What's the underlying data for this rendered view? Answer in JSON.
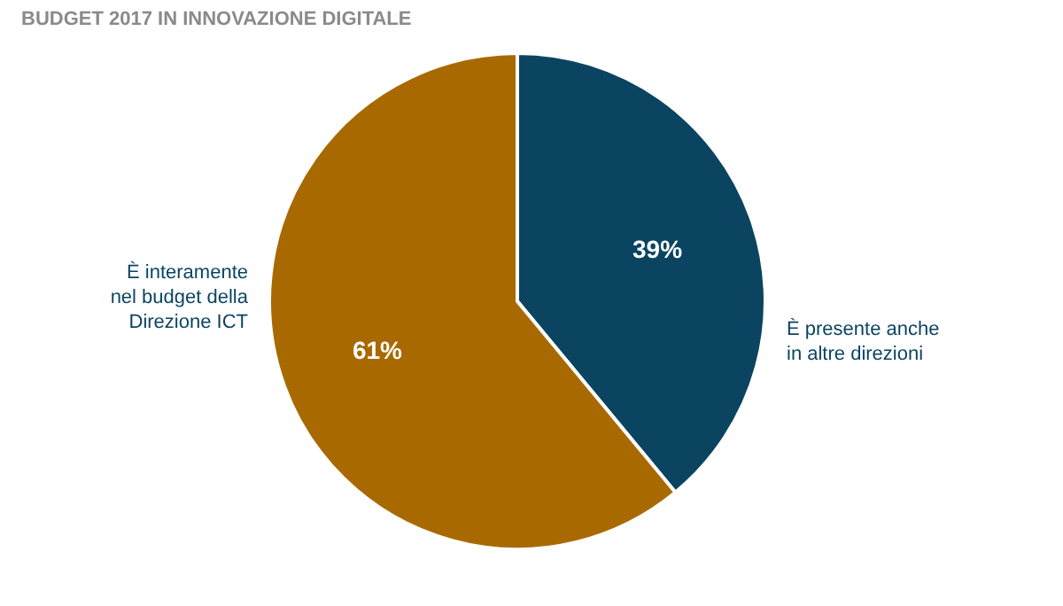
{
  "chart_data": {
    "type": "pie",
    "title": "BUDGET 2017 IN INNOVAZIONE DIGITALE",
    "categories": [
      "È presente anche\nin altre direzioni",
      "È interamente\nnel budget della\nDirezione ICT"
    ],
    "values": [
      39,
      61
    ],
    "colors": [
      "#0b4461",
      "#a86a00"
    ],
    "value_labels": [
      "39%",
      "61%"
    ]
  }
}
